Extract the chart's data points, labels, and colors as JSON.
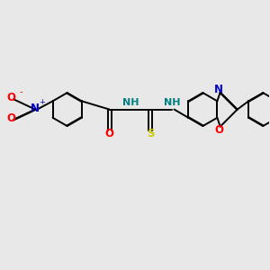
{
  "bg_color": "#e8e8e8",
  "bond_color": "#000000",
  "bond_width": 1.4,
  "dbo": 0.018,
  "figsize": [
    3.0,
    3.0
  ],
  "dpi": 100,
  "xlim": [
    0,
    10.5
  ],
  "ylim": [
    -1.5,
    4.5
  ],
  "scale": 1.0,
  "ring_r": 0.65,
  "nitro_N": [
    1.35,
    2.5
  ],
  "nitro_O1": [
    0.5,
    2.9
  ],
  "nitro_O2": [
    0.5,
    2.1
  ],
  "ring1_c": [
    2.6,
    2.5
  ],
  "CO_c": [
    4.25,
    2.5
  ],
  "O_c": [
    4.25,
    1.55
  ],
  "N1": [
    5.1,
    2.5
  ],
  "CS_c": [
    5.85,
    2.5
  ],
  "S_c": [
    5.85,
    1.55
  ],
  "N2": [
    6.7,
    2.5
  ],
  "benz_c": [
    7.9,
    2.5
  ],
  "ox_N": [
    8.58,
    3.17
  ],
  "ox_C2": [
    9.25,
    2.5
  ],
  "ox_O": [
    8.58,
    1.83
  ],
  "bi1_c": [
    10.25,
    2.5
  ],
  "bi2_c": [
    11.9,
    2.5
  ],
  "label_NO2_N_color": "#0000cc",
  "label_NO2_O_color": "#ff0000",
  "label_O_color": "#ff0000",
  "label_N_color": "#008080",
  "label_S_color": "#cccc00",
  "label_ox_N_color": "#0000cc",
  "label_ox_O_color": "#ff0000"
}
